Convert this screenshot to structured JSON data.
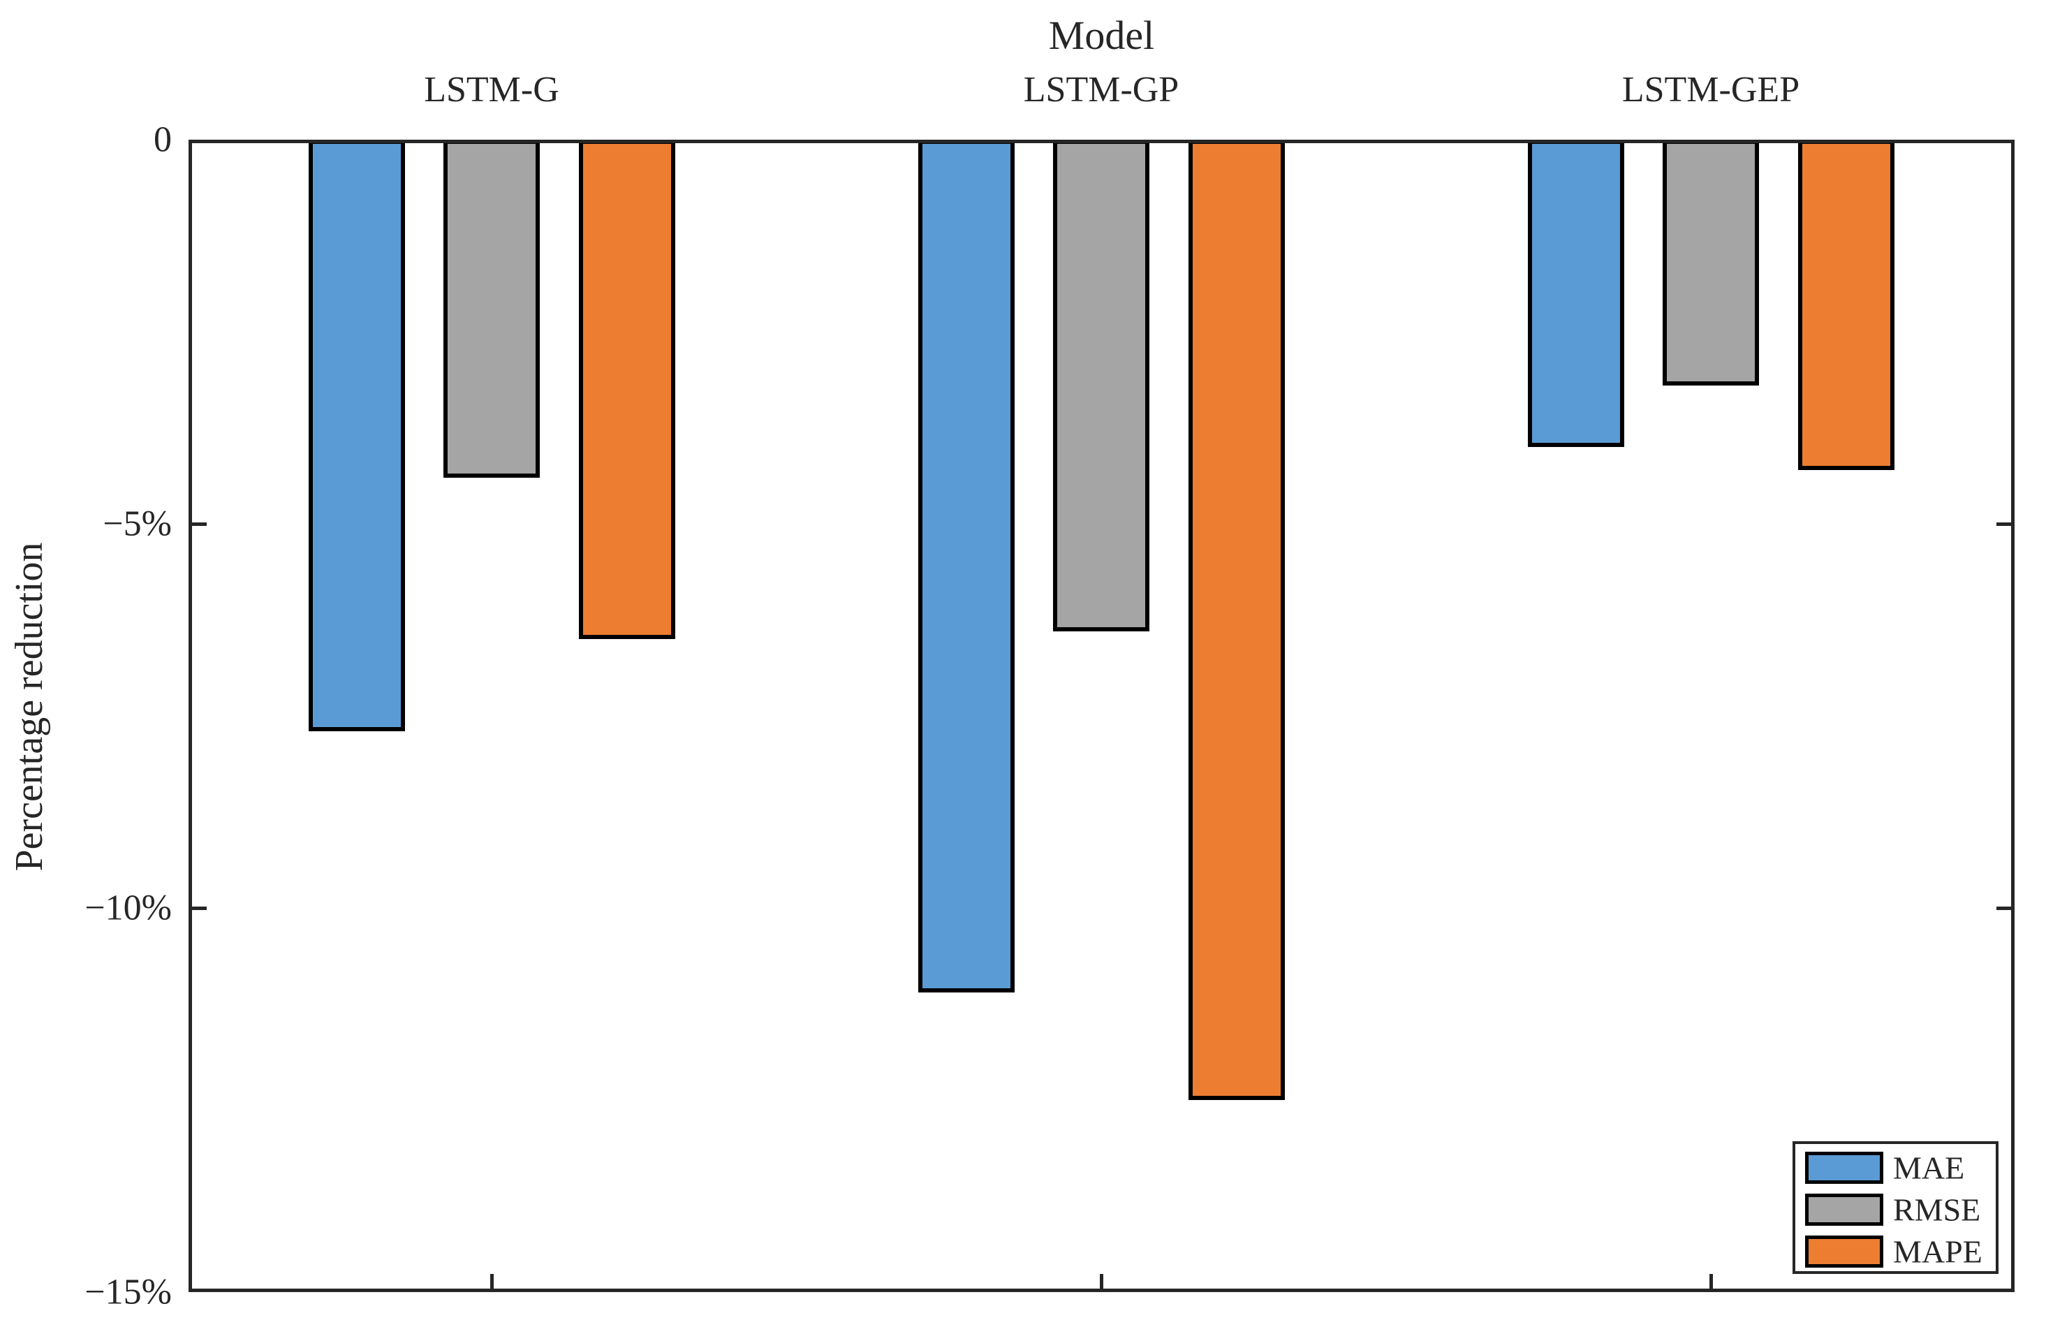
{
  "chart_data": {
    "type": "bar",
    "title": "Model",
    "ylabel": "Percentage reduction",
    "xlabel": "",
    "categories": [
      "LSTM-G",
      "LSTM-GP",
      "LSTM-GEP"
    ],
    "series": [
      {
        "name": "MAE",
        "color": "#5B9BD5",
        "values": [
          -7.7,
          -11.1,
          -4.0
        ]
      },
      {
        "name": "RMSE",
        "color": "#A5A5A5",
        "values": [
          -4.4,
          -6.4,
          -3.2
        ]
      },
      {
        "name": "MAPE",
        "color": "#ED7D31",
        "values": [
          -6.5,
          -12.5,
          -4.3
        ]
      }
    ],
    "ylim": [
      -15,
      0
    ],
    "yticks": [
      {
        "value": 0,
        "label": "0"
      },
      {
        "value": -5,
        "label": "−5%"
      },
      {
        "value": -10,
        "label": "−10%"
      },
      {
        "value": -15,
        "label": "−15%"
      }
    ],
    "grid": false,
    "legend_position": "bottom-right",
    "bar_edge_color": "#000000",
    "axis_color": "#262626"
  }
}
